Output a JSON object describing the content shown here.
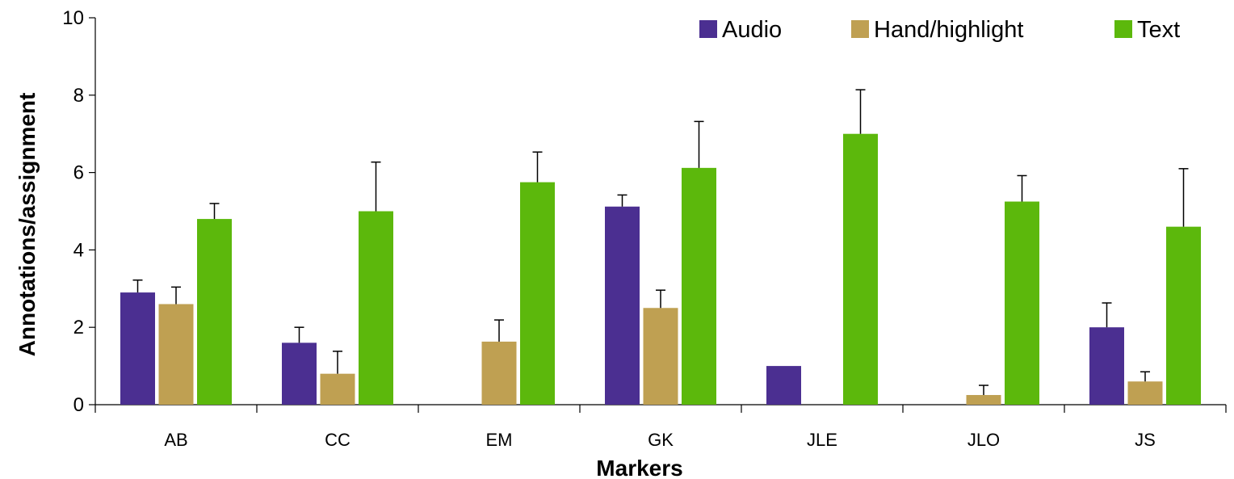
{
  "chart_data": {
    "type": "bar",
    "title": "",
    "xlabel": "Markers",
    "ylabel": "Annotations/assignment",
    "ylim": [
      0,
      10
    ],
    "yticks": [
      0,
      2,
      4,
      6,
      8,
      10
    ],
    "categories": [
      "AB",
      "CC",
      "EM",
      "GK",
      "JLE",
      "JLO",
      "JS"
    ],
    "series": [
      {
        "name": "Audio",
        "color": "#4B2F91",
        "values": [
          2.9,
          1.6,
          0,
          5.12,
          1.0,
          0,
          2.0
        ],
        "errors": [
          0.32,
          0.4,
          null,
          0.3,
          null,
          null,
          0.63
        ]
      },
      {
        "name": "Hand/highlight",
        "color": "#BFA052",
        "values": [
          2.6,
          0.8,
          1.63,
          2.5,
          0,
          0.25,
          0.6
        ],
        "errors": [
          0.44,
          0.58,
          0.56,
          0.46,
          null,
          0.25,
          0.25
        ]
      },
      {
        "name": "Text",
        "color": "#5CB80C",
        "values": [
          4.8,
          5.0,
          5.75,
          6.12,
          7.0,
          5.25,
          4.6
        ],
        "errors": [
          0.4,
          1.27,
          0.78,
          1.2,
          1.14,
          0.67,
          1.5
        ]
      }
    ],
    "legend_position": "top-right",
    "grid": false
  }
}
